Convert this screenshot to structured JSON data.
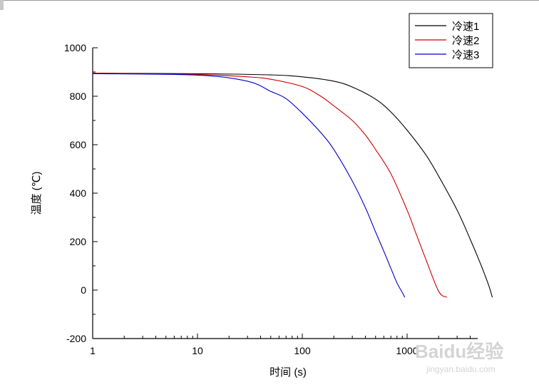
{
  "chart_data": {
    "type": "line",
    "title": "",
    "xlabel": "时间 (s)",
    "ylabel": "温度 (℃)",
    "xscale": "log",
    "xlim": [
      1,
      7000
    ],
    "ylim": [
      -200,
      1000
    ],
    "x_ticks": [
      1,
      10,
      100,
      1000
    ],
    "x_tick_labels": [
      "1",
      "10",
      "100",
      "1000"
    ],
    "y_ticks": [
      -200,
      0,
      200,
      400,
      600,
      800,
      1000
    ],
    "y_tick_labels": [
      "-200",
      "0",
      "200",
      "400",
      "600",
      "800",
      "1000"
    ],
    "grid": false,
    "legend": {
      "position": "top-right",
      "entries": [
        "冷速1",
        "冷速2",
        "冷速3"
      ]
    },
    "series": [
      {
        "name": "冷速1",
        "color": "#000000",
        "x": [
          1,
          10,
          50,
          100,
          200,
          300,
          500,
          700,
          1000,
          1500,
          2000,
          3000,
          4000,
          5000,
          6000,
          6500
        ],
        "y": [
          895,
          893,
          888,
          880,
          862,
          838,
          788,
          735,
          660,
          560,
          470,
          330,
          210,
          110,
          20,
          -30
        ]
      },
      {
        "name": "冷速2",
        "color": "#cc0000",
        "x": [
          1,
          10,
          30,
          50,
          100,
          150,
          200,
          300,
          400,
          500,
          700,
          1000,
          1200,
          1500,
          2000,
          2400
        ],
        "y": [
          895,
          890,
          880,
          870,
          840,
          800,
          760,
          700,
          640,
          580,
          480,
          330,
          240,
          130,
          -5,
          -30
        ]
      },
      {
        "name": "冷速3",
        "color": "#0000cc",
        "x": [
          1,
          10,
          30,
          50,
          70,
          100,
          150,
          200,
          300,
          400,
          500,
          600,
          700,
          800,
          900,
          950
        ],
        "y": [
          893,
          887,
          862,
          820,
          790,
          730,
          650,
          580,
          450,
          340,
          240,
          160,
          90,
          30,
          -10,
          -30
        ]
      }
    ]
  },
  "watermark": {
    "brand": "Baidu经验",
    "url": "jingyan.baidu.com"
  }
}
